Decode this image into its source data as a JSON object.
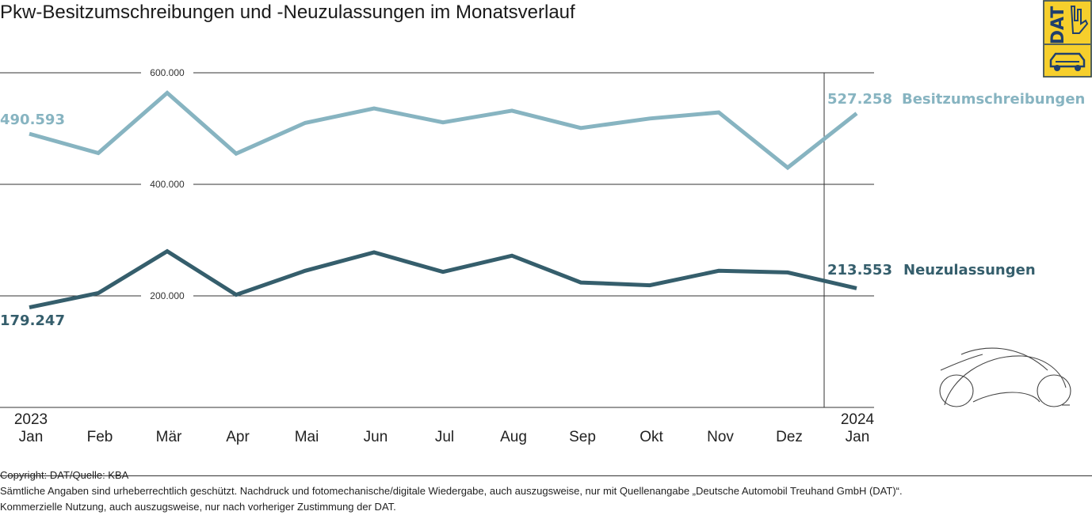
{
  "title": "Pkw-Besitzumschreibungen und -Neuzulassungen im Monatsverlauf",
  "colors": {
    "series1": "#87b4c1",
    "series2": "#355e6c",
    "logo_yellow": "#f6cf2c",
    "logo_blue": "#1f3f6e"
  },
  "logo": {
    "text": "DAT"
  },
  "chart_data": {
    "type": "line",
    "title": "Pkw-Besitzumschreibungen und -Neuzulassungen im Monatsverlauf",
    "x_year_labels": [
      "2023",
      "",
      "",
      "",
      "",
      "",
      "",
      "",
      "",
      "",
      "",
      "",
      "2024"
    ],
    "categories": [
      "Jan",
      "Feb",
      "Mär",
      "Apr",
      "Mai",
      "Jun",
      "Jul",
      "Aug",
      "Sep",
      "Okt",
      "Nov",
      "Dez",
      "Jan"
    ],
    "y_ticks": [
      200000,
      400000,
      600000
    ],
    "y_tick_labels": [
      "200.000",
      "400.000",
      "600.000"
    ],
    "ylim": [
      0,
      600000
    ],
    "grid": true,
    "series": [
      {
        "name": "Besitzumschreibungen",
        "values": [
          490593,
          456000,
          564000,
          455000,
          510000,
          536000,
          511000,
          532000,
          501000,
          518000,
          529000,
          430000,
          527258
        ],
        "start_label": "490.593",
        "end_label": "527.258"
      },
      {
        "name": "Neuzulassungen",
        "values": [
          179247,
          205000,
          280000,
          202000,
          245000,
          278000,
          243000,
          272000,
          224000,
          219000,
          245000,
          242000,
          213553
        ],
        "start_label": "179.247",
        "end_label": "213.553"
      }
    ]
  },
  "footer": {
    "copyright": "Copyright: DAT/Quelle: KBA",
    "line1": "Sämtliche Angaben sind urheberrechtlich geschützt. Nachdruck und fotomechanische/digitale Wiedergabe, auch auszugsweise, nur mit Quellenangabe „Deutsche Automobil Treuhand GmbH (DAT)“.",
    "line2": "Kommerzielle Nutzung, auch auszugsweise, nur nach vorheriger Zustimmung der DAT."
  }
}
